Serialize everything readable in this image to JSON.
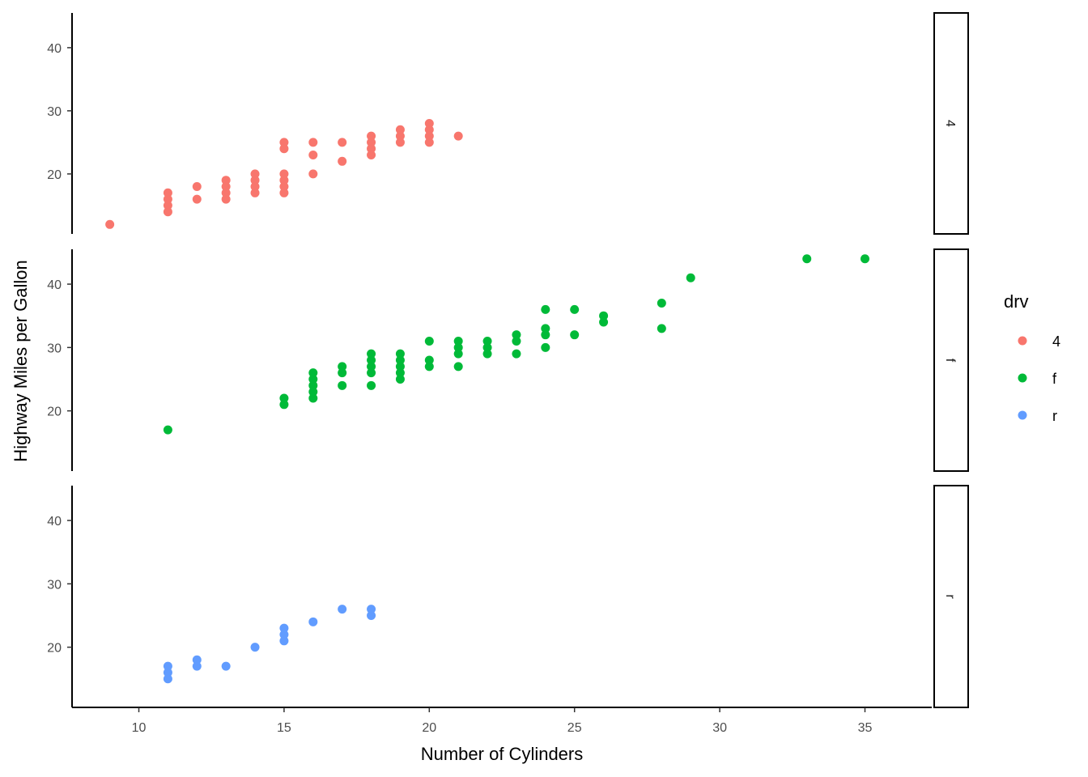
{
  "chart_data": {
    "type": "scatter",
    "xlabel": "Number of Cylinders",
    "ylabel": "Highway Miles per Gallon",
    "xlim": [
      7.7,
      37.3
    ],
    "ylim": [
      10.5,
      45.5
    ],
    "x_ticks": [
      10,
      15,
      20,
      25,
      30,
      35
    ],
    "y_ticks": [
      20,
      30,
      40
    ],
    "facet_by": "drv",
    "facets": [
      "4",
      "f",
      "r"
    ],
    "legend": {
      "title": "drv",
      "placement": "right",
      "entries": [
        {
          "label": "4",
          "color": "#F8766D"
        },
        {
          "label": "f",
          "color": "#00BA38"
        },
        {
          "label": "r",
          "color": "#619CFF"
        }
      ]
    },
    "series": [
      {
        "name": "4",
        "color": "#F8766D",
        "points": [
          [
            9,
            12
          ],
          [
            11,
            14
          ],
          [
            11,
            15
          ],
          [
            11,
            16
          ],
          [
            11,
            17
          ],
          [
            12,
            16
          ],
          [
            12,
            18
          ],
          [
            13,
            16
          ],
          [
            13,
            17
          ],
          [
            13,
            18
          ],
          [
            13,
            19
          ],
          [
            14,
            17
          ],
          [
            14,
            18
          ],
          [
            14,
            19
          ],
          [
            14,
            20
          ],
          [
            15,
            17
          ],
          [
            15,
            18
          ],
          [
            15,
            19
          ],
          [
            15,
            20
          ],
          [
            15,
            24
          ],
          [
            15,
            25
          ],
          [
            16,
            20
          ],
          [
            16,
            23
          ],
          [
            16,
            25
          ],
          [
            17,
            22
          ],
          [
            17,
            25
          ],
          [
            18,
            23
          ],
          [
            18,
            24
          ],
          [
            18,
            25
          ],
          [
            18,
            26
          ],
          [
            19,
            25
          ],
          [
            19,
            26
          ],
          [
            19,
            27
          ],
          [
            20,
            25
          ],
          [
            20,
            26
          ],
          [
            20,
            27
          ],
          [
            20,
            28
          ],
          [
            21,
            26
          ]
        ]
      },
      {
        "name": "f",
        "color": "#00BA38",
        "points": [
          [
            11,
            17
          ],
          [
            15,
            21
          ],
          [
            15,
            22
          ],
          [
            16,
            22
          ],
          [
            16,
            23
          ],
          [
            16,
            24
          ],
          [
            16,
            25
          ],
          [
            16,
            26
          ],
          [
            17,
            24
          ],
          [
            17,
            26
          ],
          [
            17,
            27
          ],
          [
            18,
            24
          ],
          [
            18,
            26
          ],
          [
            18,
            27
          ],
          [
            18,
            28
          ],
          [
            18,
            29
          ],
          [
            19,
            25
          ],
          [
            19,
            26
          ],
          [
            19,
            27
          ],
          [
            19,
            28
          ],
          [
            19,
            29
          ],
          [
            20,
            27
          ],
          [
            20,
            28
          ],
          [
            20,
            31
          ],
          [
            21,
            27
          ],
          [
            21,
            29
          ],
          [
            21,
            30
          ],
          [
            21,
            31
          ],
          [
            22,
            29
          ],
          [
            22,
            30
          ],
          [
            22,
            31
          ],
          [
            23,
            29
          ],
          [
            23,
            31
          ],
          [
            23,
            32
          ],
          [
            24,
            30
          ],
          [
            24,
            32
          ],
          [
            24,
            33
          ],
          [
            24,
            36
          ],
          [
            25,
            32
          ],
          [
            25,
            36
          ],
          [
            26,
            34
          ],
          [
            26,
            35
          ],
          [
            28,
            33
          ],
          [
            28,
            37
          ],
          [
            29,
            41
          ],
          [
            33,
            44
          ],
          [
            35,
            44
          ]
        ]
      },
      {
        "name": "r",
        "color": "#619CFF",
        "points": [
          [
            11,
            15
          ],
          [
            11,
            16
          ],
          [
            11,
            17
          ],
          [
            12,
            17
          ],
          [
            12,
            18
          ],
          [
            13,
            17
          ],
          [
            14,
            20
          ],
          [
            15,
            21
          ],
          [
            15,
            22
          ],
          [
            15,
            23
          ],
          [
            16,
            24
          ],
          [
            17,
            26
          ],
          [
            18,
            25
          ],
          [
            18,
            26
          ]
        ]
      }
    ]
  }
}
